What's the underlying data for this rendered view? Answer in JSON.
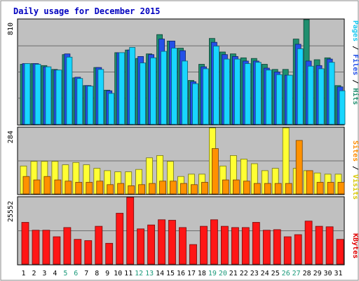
{
  "chart_data": {
    "type": "bar",
    "title": "Daily usage for December 2015",
    "categories": [
      "1",
      "2",
      "3",
      "4",
      "5",
      "6",
      "7",
      "8",
      "9",
      "10",
      "11",
      "12",
      "13",
      "14",
      "15",
      "16",
      "17",
      "18",
      "19",
      "20",
      "21",
      "22",
      "23",
      "24",
      "25",
      "26",
      "27",
      "28",
      "29",
      "30",
      "31"
    ],
    "weekend_days": [
      "5",
      "6",
      "12",
      "13",
      "19",
      "20",
      "26",
      "27"
    ],
    "panels": [
      {
        "id": "hits",
        "ymax": 810,
        "ytick_label": "810",
        "right_labels": [
          "Pages",
          "Files",
          "Hits"
        ],
        "series": [
          {
            "name": "Hits",
            "color": "#1f8f6f",
            "values": [
              465,
              470,
              455,
              425,
              540,
              360,
              300,
              440,
              265,
              555,
              575,
              510,
              545,
              695,
              645,
              590,
              340,
              465,
              665,
              560,
              545,
              515,
              510,
              465,
              425,
              425,
              660,
              855,
              500,
              515,
              300
            ]
          },
          {
            "name": "Files",
            "color": "#2450e8",
            "values": [
              470,
              470,
              445,
              420,
              545,
              365,
              300,
              440,
              260,
              555,
              575,
              525,
              540,
              660,
              645,
              570,
              330,
              445,
              635,
              540,
              525,
              490,
              490,
              435,
              405,
              380,
              620,
              490,
              455,
              505,
              290
            ]
          },
          {
            "name": "Pages",
            "color": "#18d6ff",
            "values": [
              470,
              465,
              445,
              420,
              520,
              355,
              295,
              425,
              240,
              555,
              595,
              475,
              515,
              565,
              590,
              490,
              315,
              430,
              605,
              505,
              505,
              470,
              480,
              420,
              385,
              380,
              585,
              450,
              430,
              480,
              260
            ]
          }
        ]
      },
      {
        "id": "visits",
        "ymax": 284,
        "ytick_label": "284",
        "right_labels": [
          "Sites",
          "Visits"
        ],
        "series": [
          {
            "name": "Visits",
            "color": "#ffff33",
            "values": [
              120,
              140,
              140,
              140,
              125,
              135,
              125,
              110,
              100,
              95,
              95,
              105,
              155,
              165,
              140,
              75,
              85,
              85,
              290,
              120,
              165,
              150,
              130,
              100,
              110,
              290,
              110,
              100,
              90,
              85,
              85
            ]
          },
          {
            "name": "Sites",
            "color": "#ff9100",
            "values": [
              75,
              60,
              75,
              60,
              55,
              50,
              50,
              55,
              40,
              45,
              35,
              40,
              45,
              55,
              55,
              45,
              40,
              50,
              195,
              60,
              60,
              55,
              45,
              45,
              45,
              45,
              230,
              100,
              50,
              50,
              50
            ]
          }
        ]
      },
      {
        "id": "kbytes",
        "ymax": 25552,
        "ytick_label": "25552",
        "right_labels": [
          "KBytes"
        ],
        "series": [
          {
            "name": "KBytes",
            "color": "#ff1616",
            "values": [
              16000,
              13000,
              13000,
              10500,
              14000,
              9500,
              9000,
              14500,
              8000,
              19500,
              25552,
              13500,
              15000,
              17000,
              16800,
              14000,
              7500,
              14500,
              17000,
              14500,
              14000,
              14000,
              16000,
              13000,
              13200,
              10500,
              11300,
              16500,
              14500,
              14300,
              9500
            ]
          }
        ]
      }
    ]
  }
}
